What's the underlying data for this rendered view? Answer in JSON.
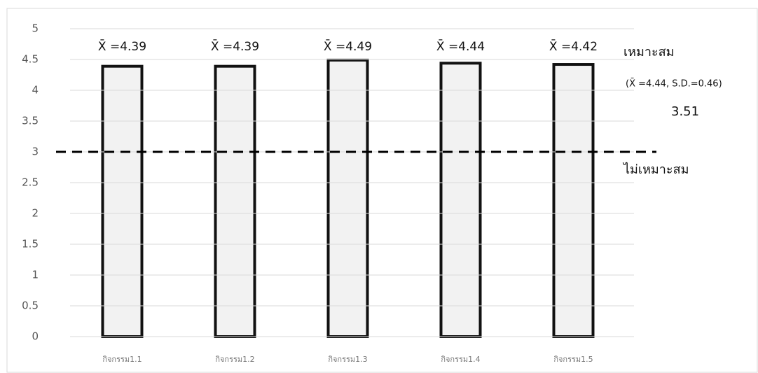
{
  "chart_data": {
    "type": "bar",
    "categories": [
      "กิจกรรม1.1",
      "กิจกรรม1.2",
      "กิจกรรม1.3",
      "กิจกรรม1.4",
      "กิจกรรม1.5"
    ],
    "values": [
      4.39,
      4.39,
      4.49,
      4.44,
      4.42
    ],
    "value_labels": [
      "X̄ =4.39",
      "X̄ =4.39",
      "X̄ =4.49",
      "X̄ =4.44",
      "X̄ =4.42"
    ],
    "color": "#f2f2f2",
    "edge_color": "#111111",
    "ylim": [
      0,
      5
    ],
    "yticks": [
      0,
      0.5,
      1,
      1.5,
      2,
      2.5,
      3,
      3.5,
      4,
      4.5,
      5
    ],
    "grid": true,
    "reference_line": 3,
    "annotations": [
      "เหมาะสม",
      "(X̄ =4.44, S.D.=0.46)",
      "3.51",
      "ไม่เหมาะสม"
    ]
  }
}
